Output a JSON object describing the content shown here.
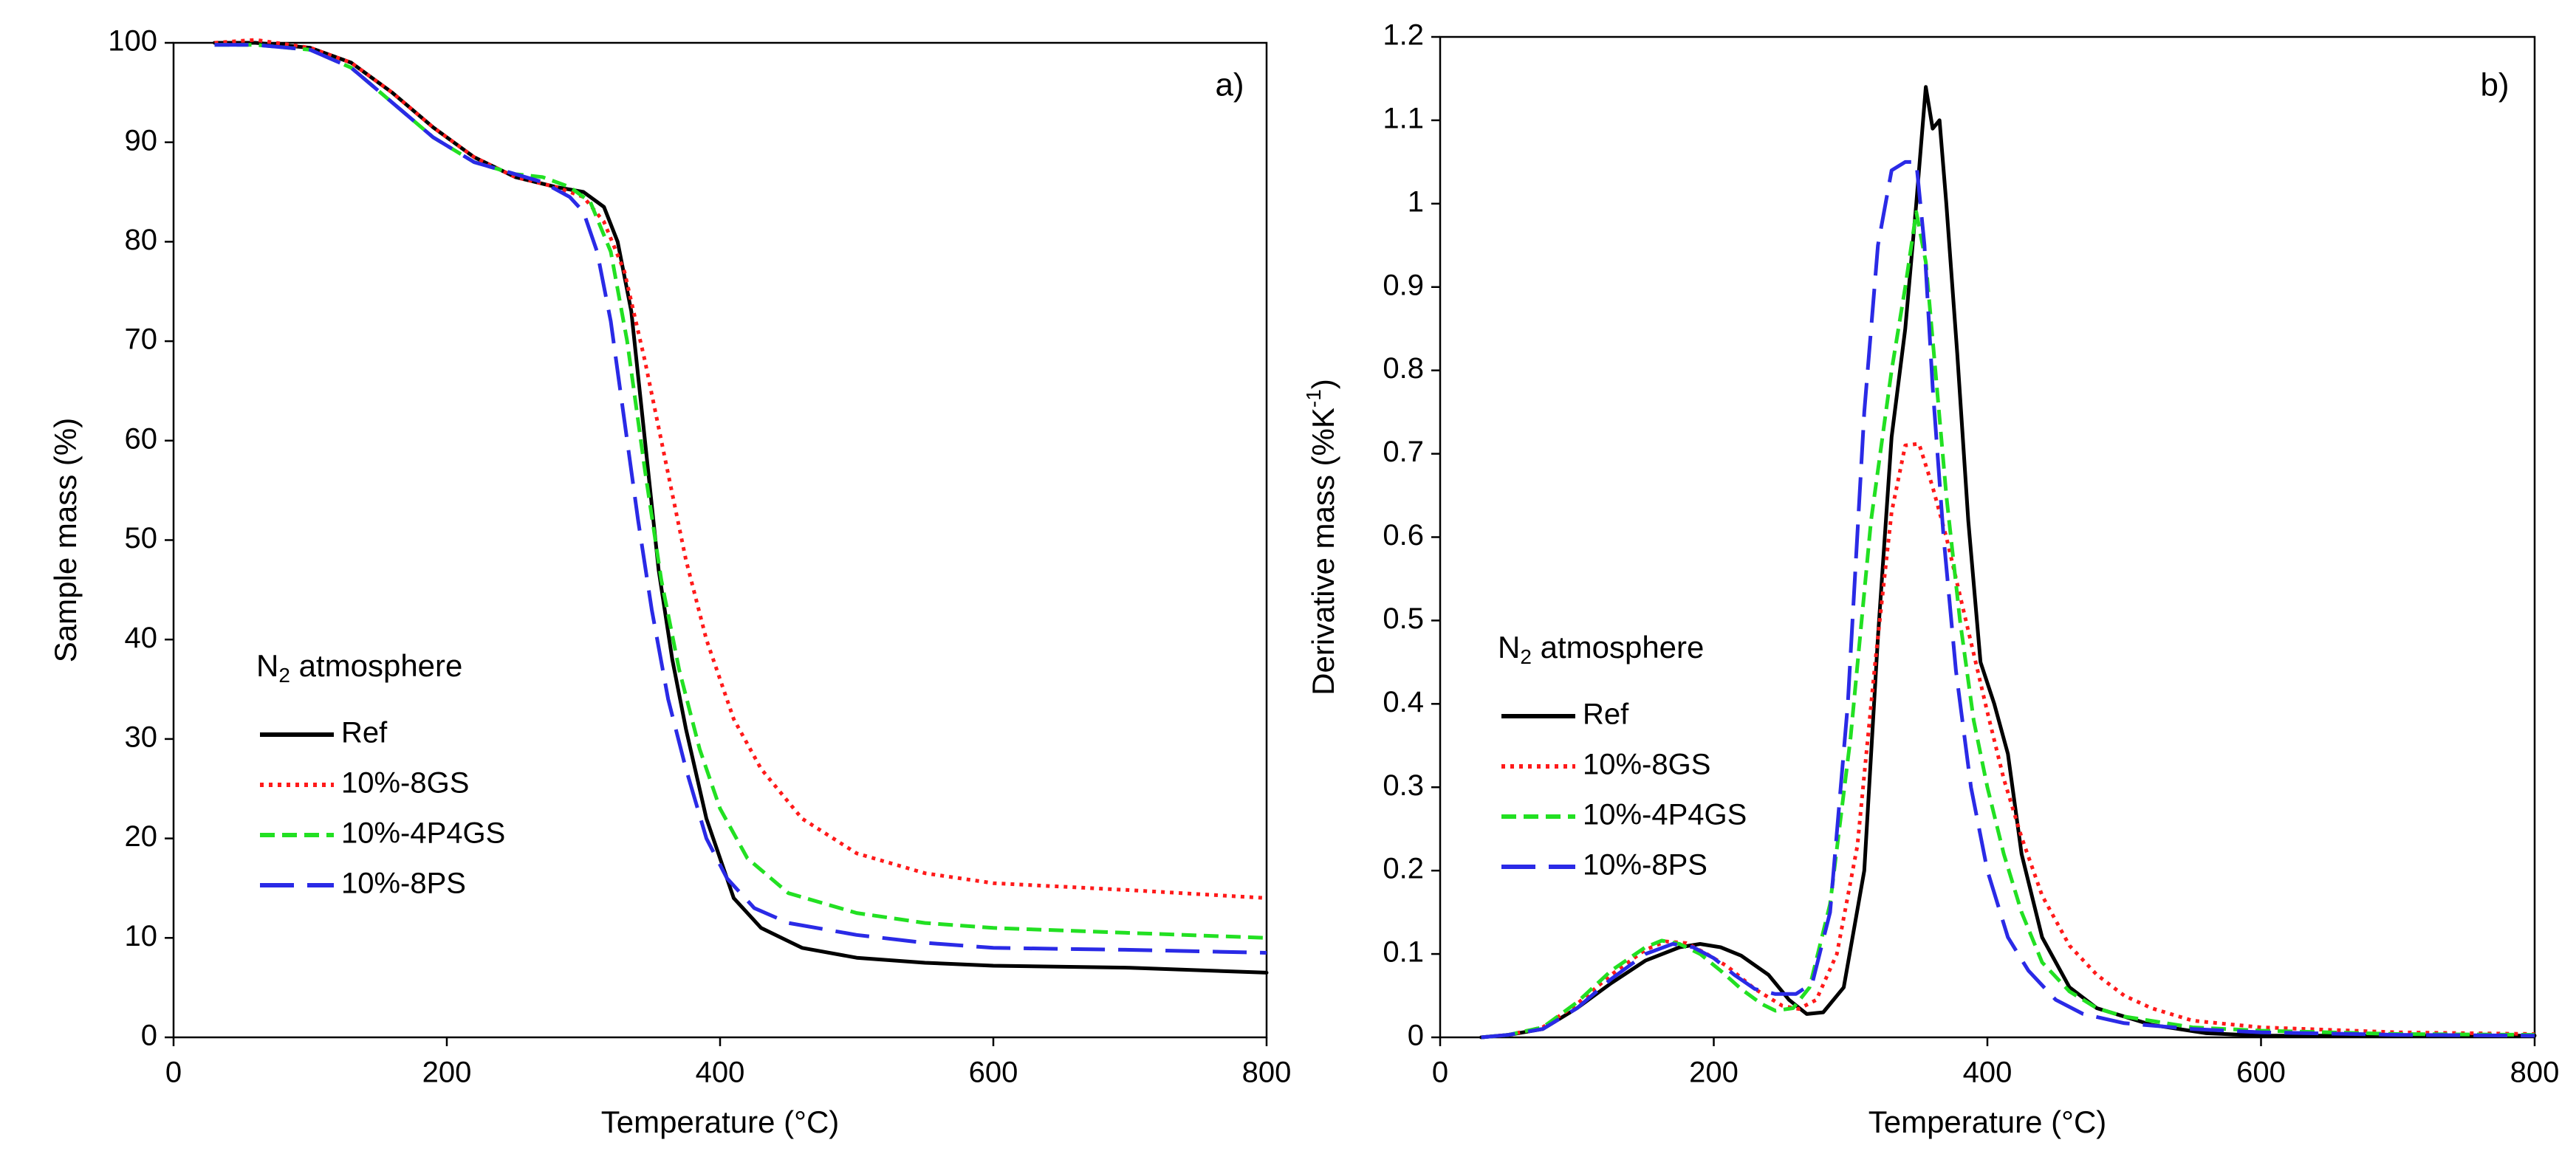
{
  "colors": {
    "ref": "#000000",
    "gs": "#ff1a1a",
    "p4gs": "#22e022",
    "ps": "#2a2ae6",
    "axis": "#000000",
    "background": "#ffffff"
  },
  "chart_data": [
    {
      "type": "line",
      "panel_label": "a)",
      "title": "",
      "xlabel": "Temperature (°C)",
      "ylabel": "Sample mass (%)",
      "xlim": [
        0,
        800
      ],
      "ylim": [
        0,
        100
      ],
      "xticks": [
        "0",
        "200",
        "400",
        "600",
        "800"
      ],
      "yticks": [
        "0",
        "10",
        "20",
        "30",
        "40",
        "50",
        "60",
        "70",
        "80",
        "90",
        "100"
      ],
      "grid": false,
      "legend": {
        "title_main": "N",
        "title_sub": "2",
        "title_rest": " atmosphere",
        "placement": "middle-left",
        "entries": [
          "Ref",
          "10%-8GS",
          "10%-4P4GS",
          "10%-8PS"
        ]
      },
      "series": [
        {
          "name": "Ref",
          "style": "solid",
          "color_key": "ref",
          "points": [
            [
              30,
              100
            ],
            [
              60,
              100
            ],
            [
              100,
              99.5
            ],
            [
              130,
              98
            ],
            [
              160,
              95
            ],
            [
              190,
              91.5
            ],
            [
              220,
              88.5
            ],
            [
              250,
              86.5
            ],
            [
              280,
              85.5
            ],
            [
              300,
              85
            ],
            [
              315,
              83.5
            ],
            [
              325,
              80
            ],
            [
              335,
              73
            ],
            [
              345,
              60
            ],
            [
              355,
              47
            ],
            [
              365,
              38
            ],
            [
              375,
              31
            ],
            [
              390,
              22
            ],
            [
              410,
              14
            ],
            [
              430,
              11
            ],
            [
              460,
              9
            ],
            [
              500,
              8
            ],
            [
              550,
              7.5
            ],
            [
              600,
              7.2
            ],
            [
              700,
              7
            ],
            [
              800,
              6.5
            ]
          ]
        },
        {
          "name": "10%-8GS",
          "style": "dotted",
          "color_key": "gs",
          "points": [
            [
              30,
              100
            ],
            [
              60,
              100.3
            ],
            [
              100,
              99.5
            ],
            [
              130,
              98
            ],
            [
              160,
              95
            ],
            [
              190,
              91.5
            ],
            [
              220,
              88.5
            ],
            [
              250,
              86.5
            ],
            [
              280,
              85.5
            ],
            [
              300,
              84.5
            ],
            [
              315,
              82
            ],
            [
              330,
              77
            ],
            [
              345,
              68
            ],
            [
              360,
              58
            ],
            [
              375,
              48
            ],
            [
              390,
              40
            ],
            [
              410,
              32
            ],
            [
              430,
              27
            ],
            [
              460,
              22
            ],
            [
              500,
              18.5
            ],
            [
              550,
              16.5
            ],
            [
              600,
              15.5
            ],
            [
              700,
              14.8
            ],
            [
              800,
              14
            ]
          ]
        },
        {
          "name": "10%-4P4GS",
          "style": "dashed",
          "color_key": "p4gs",
          "points": [
            [
              30,
              99.8
            ],
            [
              60,
              99.8
            ],
            [
              100,
              99.3
            ],
            [
              130,
              97.5
            ],
            [
              160,
              94
            ],
            [
              190,
              90.5
            ],
            [
              220,
              88
            ],
            [
              250,
              86.8
            ],
            [
              270,
              86.5
            ],
            [
              290,
              85.5
            ],
            [
              305,
              84
            ],
            [
              320,
              79
            ],
            [
              332,
              70
            ],
            [
              345,
              57
            ],
            [
              357,
              46
            ],
            [
              370,
              37
            ],
            [
              385,
              29
            ],
            [
              400,
              23
            ],
            [
              420,
              18
            ],
            [
              450,
              14.5
            ],
            [
              500,
              12.5
            ],
            [
              550,
              11.5
            ],
            [
              600,
              11
            ],
            [
              700,
              10.5
            ],
            [
              800,
              10
            ]
          ]
        },
        {
          "name": "10%-8PS",
          "style": "longdash",
          "color_key": "ps",
          "points": [
            [
              30,
              99.8
            ],
            [
              60,
              99.8
            ],
            [
              100,
              99.3
            ],
            [
              130,
              97.5
            ],
            [
              160,
              94
            ],
            [
              190,
              90.5
            ],
            [
              220,
              88
            ],
            [
              250,
              86.8
            ],
            [
              270,
              86
            ],
            [
              290,
              84.5
            ],
            [
              300,
              83
            ],
            [
              310,
              79
            ],
            [
              320,
              72
            ],
            [
              330,
              62
            ],
            [
              340,
              52
            ],
            [
              350,
              43
            ],
            [
              362,
              34
            ],
            [
              375,
              27
            ],
            [
              390,
              20
            ],
            [
              405,
              16
            ],
            [
              425,
              13
            ],
            [
              450,
              11.5
            ],
            [
              500,
              10.3
            ],
            [
              550,
              9.5
            ],
            [
              600,
              9
            ],
            [
              700,
              8.8
            ],
            [
              800,
              8.5
            ]
          ]
        }
      ]
    },
    {
      "type": "line",
      "panel_label": "b)",
      "title": "",
      "xlabel": "Temperature (°C)",
      "ylabel_main": "Derivative mass (%K",
      "ylabel_sup": "-1",
      "ylabel_end": ")",
      "xlim": [
        0,
        800
      ],
      "ylim": [
        0,
        1.2
      ],
      "xticks": [
        "0",
        "200",
        "400",
        "600",
        "800"
      ],
      "yticks": [
        "0",
        "0.1",
        "0.2",
        "0.3",
        "0.4",
        "0.5",
        "0.6",
        "0.7",
        "0.8",
        "0.9",
        "1",
        "1.1",
        "1.2"
      ],
      "grid": false,
      "legend": {
        "title_main": "N",
        "title_sub": "2",
        "title_rest": " atmosphere",
        "placement": "middle-left",
        "entries": [
          "Ref",
          "10%-8GS",
          "10%-4P4GS",
          "10%-8PS"
        ]
      },
      "series": [
        {
          "name": "Ref",
          "style": "solid",
          "color_key": "ref",
          "points": [
            [
              30,
              0
            ],
            [
              50,
              0.003
            ],
            [
              75,
              0.01
            ],
            [
              100,
              0.035
            ],
            [
              125,
              0.065
            ],
            [
              150,
              0.092
            ],
            [
              175,
              0.108
            ],
            [
              190,
              0.112
            ],
            [
              205,
              0.108
            ],
            [
              220,
              0.098
            ],
            [
              240,
              0.075
            ],
            [
              255,
              0.045
            ],
            [
              268,
              0.028
            ],
            [
              280,
              0.03
            ],
            [
              295,
              0.06
            ],
            [
              310,
              0.2
            ],
            [
              320,
              0.48
            ],
            [
              330,
              0.72
            ],
            [
              340,
              0.85
            ],
            [
              348,
              1.0
            ],
            [
              355,
              1.14
            ],
            [
              360,
              1.09
            ],
            [
              365,
              1.1
            ],
            [
              370,
              1.0
            ],
            [
              378,
              0.82
            ],
            [
              386,
              0.62
            ],
            [
              395,
              0.45
            ],
            [
              405,
              0.4
            ],
            [
              415,
              0.34
            ],
            [
              425,
              0.22
            ],
            [
              440,
              0.12
            ],
            [
              460,
              0.06
            ],
            [
              480,
              0.035
            ],
            [
              500,
              0.025
            ],
            [
              520,
              0.015
            ],
            [
              560,
              0.005
            ],
            [
              600,
              0.002
            ],
            [
              700,
              0.002
            ],
            [
              800,
              0.002
            ]
          ]
        },
        {
          "name": "10%-8GS",
          "style": "dotted",
          "color_key": "gs",
          "points": [
            [
              30,
              0
            ],
            [
              50,
              0.003
            ],
            [
              75,
              0.012
            ],
            [
              100,
              0.04
            ],
            [
              125,
              0.075
            ],
            [
              150,
              0.105
            ],
            [
              165,
              0.115
            ],
            [
              180,
              0.113
            ],
            [
              195,
              0.1
            ],
            [
              210,
              0.085
            ],
            [
              230,
              0.058
            ],
            [
              250,
              0.038
            ],
            [
              262,
              0.034
            ],
            [
              275,
              0.045
            ],
            [
              290,
              0.1
            ],
            [
              305,
              0.23
            ],
            [
              318,
              0.45
            ],
            [
              330,
              0.63
            ],
            [
              340,
              0.71
            ],
            [
              350,
              0.712
            ],
            [
              360,
              0.66
            ],
            [
              370,
              0.6
            ],
            [
              380,
              0.53
            ],
            [
              390,
              0.46
            ],
            [
              400,
              0.39
            ],
            [
              412,
              0.31
            ],
            [
              425,
              0.24
            ],
            [
              440,
              0.17
            ],
            [
              460,
              0.11
            ],
            [
              480,
              0.075
            ],
            [
              500,
              0.05
            ],
            [
              520,
              0.035
            ],
            [
              550,
              0.02
            ],
            [
              600,
              0.012
            ],
            [
              700,
              0.006
            ],
            [
              800,
              0.004
            ]
          ]
        },
        {
          "name": "10%-4P4GS",
          "style": "dashed",
          "color_key": "p4gs",
          "points": [
            [
              30,
              0
            ],
            [
              50,
              0.003
            ],
            [
              75,
              0.012
            ],
            [
              100,
              0.042
            ],
            [
              125,
              0.08
            ],
            [
              150,
              0.108
            ],
            [
              162,
              0.116
            ],
            [
              175,
              0.112
            ],
            [
              190,
              0.1
            ],
            [
              205,
              0.08
            ],
            [
              220,
              0.058
            ],
            [
              235,
              0.04
            ],
            [
              245,
              0.032
            ],
            [
              258,
              0.035
            ],
            [
              270,
              0.06
            ],
            [
              285,
              0.16
            ],
            [
              300,
              0.36
            ],
            [
              315,
              0.62
            ],
            [
              330,
              0.8
            ],
            [
              340,
              0.9
            ],
            [
              348,
              0.99
            ],
            [
              355,
              0.93
            ],
            [
              362,
              0.8
            ],
            [
              370,
              0.65
            ],
            [
              380,
              0.5
            ],
            [
              390,
              0.38
            ],
            [
              400,
              0.3
            ],
            [
              412,
              0.22
            ],
            [
              425,
              0.15
            ],
            [
              440,
              0.09
            ],
            [
              460,
              0.055
            ],
            [
              480,
              0.035
            ],
            [
              500,
              0.025
            ],
            [
              550,
              0.012
            ],
            [
              600,
              0.008
            ],
            [
              700,
              0.004
            ],
            [
              800,
              0.003
            ]
          ]
        },
        {
          "name": "10%-8PS",
          "style": "longdash",
          "color_key": "ps",
          "points": [
            [
              30,
              0
            ],
            [
              50,
              0.003
            ],
            [
              75,
              0.01
            ],
            [
              100,
              0.035
            ],
            [
              125,
              0.07
            ],
            [
              150,
              0.1
            ],
            [
              170,
              0.112
            ],
            [
              185,
              0.108
            ],
            [
              200,
              0.095
            ],
            [
              215,
              0.075
            ],
            [
              230,
              0.058
            ],
            [
              245,
              0.052
            ],
            [
              260,
              0.052
            ],
            [
              272,
              0.065
            ],
            [
              285,
              0.15
            ],
            [
              298,
              0.4
            ],
            [
              310,
              0.75
            ],
            [
              320,
              0.95
            ],
            [
              330,
              1.04
            ],
            [
              340,
              1.05
            ],
            [
              348,
              1.05
            ],
            [
              354,
              0.95
            ],
            [
              360,
              0.78
            ],
            [
              368,
              0.6
            ],
            [
              377,
              0.44
            ],
            [
              388,
              0.3
            ],
            [
              400,
              0.2
            ],
            [
              415,
              0.12
            ],
            [
              430,
              0.08
            ],
            [
              450,
              0.045
            ],
            [
              470,
              0.028
            ],
            [
              500,
              0.017
            ],
            [
              550,
              0.01
            ],
            [
              600,
              0.006
            ],
            [
              700,
              0.003
            ],
            [
              800,
              0.002
            ]
          ]
        }
      ]
    }
  ]
}
